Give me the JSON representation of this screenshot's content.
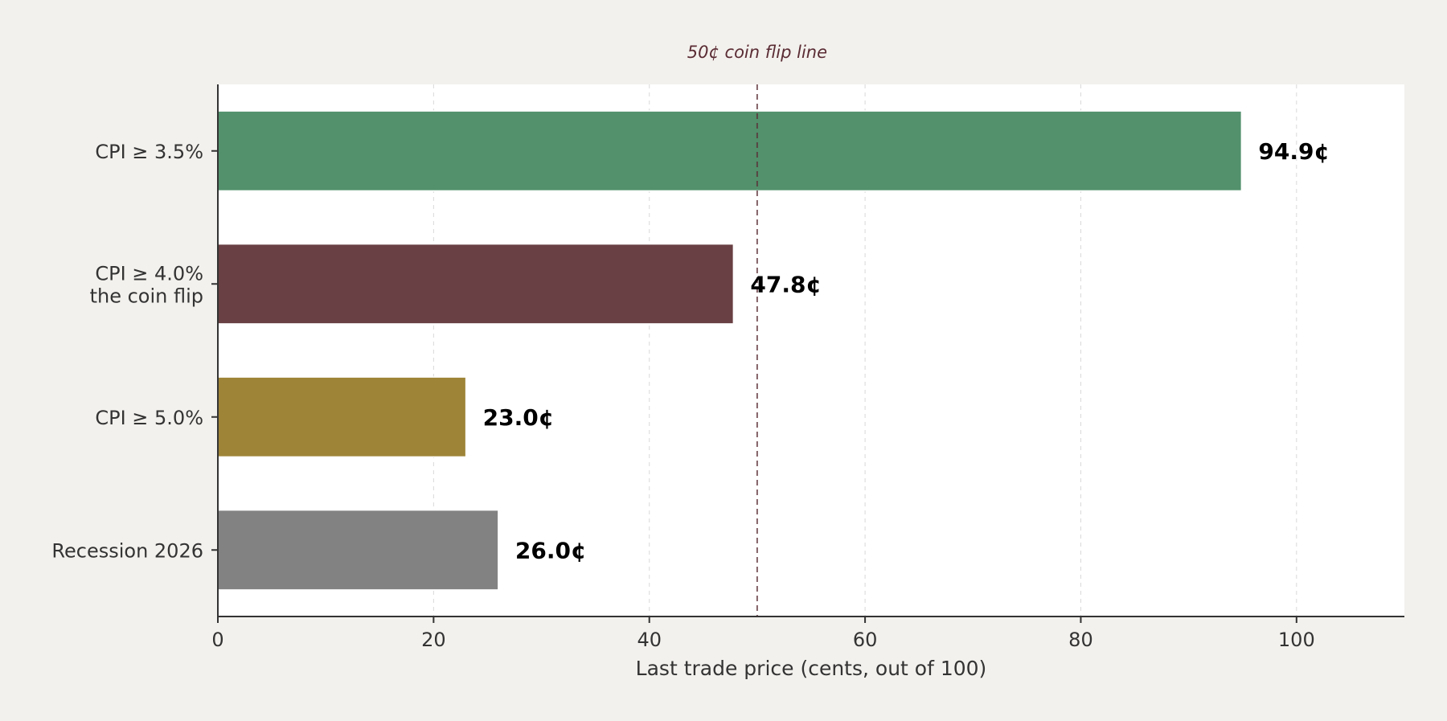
{
  "chart_data": {
    "type": "bar",
    "orientation": "horizontal",
    "categories": [
      [
        "CPI ≥ 3.5%"
      ],
      [
        "CPI ≥ 4.0%",
        "the coin flip"
      ],
      [
        "CPI ≥ 5.0%"
      ],
      [
        "Recession 2026"
      ]
    ],
    "values": [
      94.9,
      47.8,
      23.0,
      26.0
    ],
    "value_labels": [
      "94.9¢",
      "47.8¢",
      "23.0¢",
      "26.0¢"
    ],
    "bar_colors": [
      "#4f8f69",
      "#663c3f",
      "#9c8233",
      "#7f7f7f"
    ],
    "xlabel": "Last trade price (cents, out of 100)",
    "xlim": [
      0,
      110
    ],
    "xticks": [
      0,
      20,
      40,
      60,
      80,
      100
    ],
    "grid": "vertical dashed",
    "reference_line": {
      "value": 50,
      "label": "50¢ coin flip line",
      "color": "#5a2c34"
    }
  }
}
